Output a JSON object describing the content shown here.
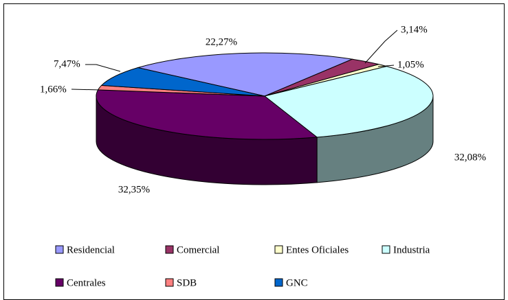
{
  "chart_data": {
    "type": "pie3d",
    "categories": [
      "Residencial",
      "Comercial",
      "Entes Oficiales",
      "Industria",
      "Centrales",
      "SDB",
      "GNC"
    ],
    "values": [
      22.27,
      3.14,
      1.05,
      32.08,
      32.35,
      1.66,
      7.47
    ],
    "value_labels": [
      "22,27%",
      "3,14%",
      "1,05%",
      "32,08%",
      "32,35%",
      "1,66%",
      "7,47%"
    ],
    "colors": [
      "#9999ff",
      "#993366",
      "#ffffcc",
      "#ccffff",
      "#660066",
      "#ff8080",
      "#0066cc"
    ]
  }
}
